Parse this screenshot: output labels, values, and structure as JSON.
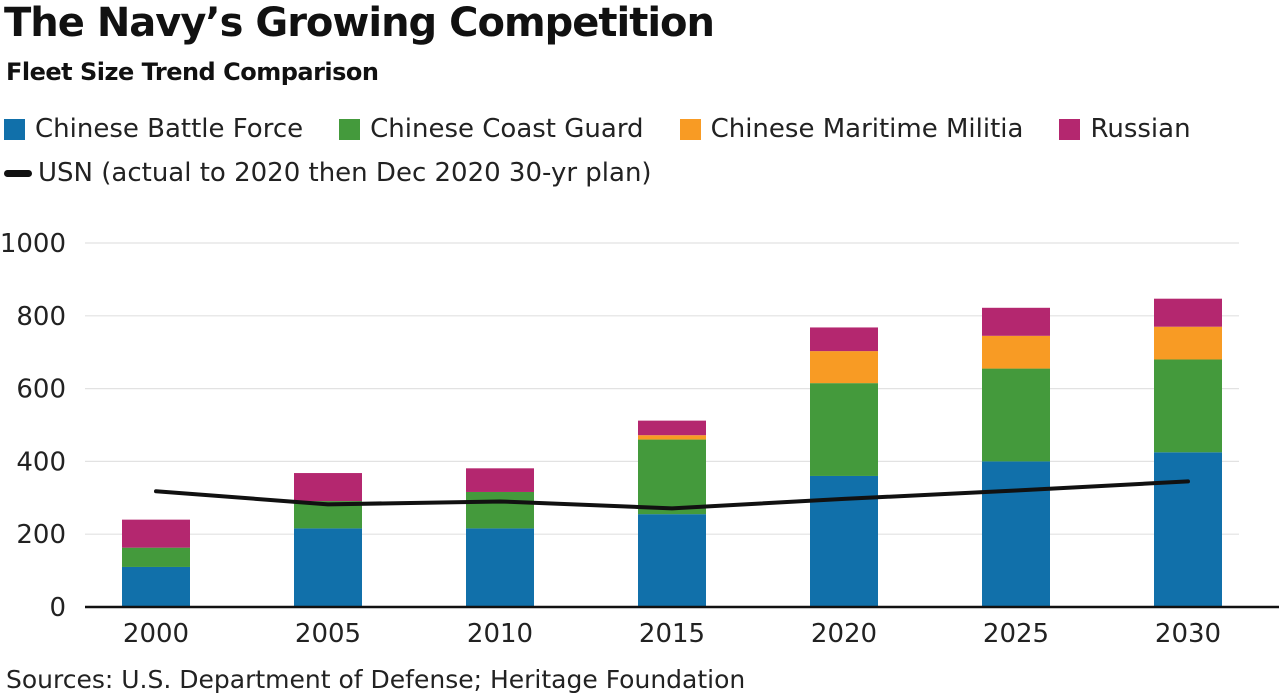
{
  "title": "The Navy’s Growing Competition",
  "subtitle": "Fleet Size Trend Comparison",
  "source": "Sources: U.S. Department of Defense; Heritage Foundation",
  "colors": {
    "chinese_battle_force": "#1170aa",
    "chinese_coast_guard": "#449a3c",
    "chinese_maritime_militia": "#f89b24",
    "russian": "#b4276f",
    "usn": "#111111"
  },
  "legend": {
    "battle_force": "Chinese Battle Force",
    "coast_guard": "Chinese Coast Guard",
    "militia": "Chinese Maritime Militia",
    "russian": "Russian",
    "usn": "USN (actual to 2020 then Dec 2020 30-yr plan)"
  },
  "chart_data": {
    "type": "bar",
    "stacked": true,
    "title": "The Navy’s Growing Competition",
    "subtitle": "Fleet Size Trend Comparison",
    "categories": [
      "2000",
      "2005",
      "2010",
      "2015",
      "2020",
      "2025",
      "2030"
    ],
    "series": [
      {
        "name": "Chinese Battle Force",
        "color": "#1170aa",
        "values": [
          110,
          216,
          216,
          255,
          360,
          400,
          425
        ]
      },
      {
        "name": "Chinese Coast Guard",
        "color": "#449a3c",
        "values": [
          53,
          75,
          100,
          205,
          255,
          255,
          255
        ]
      },
      {
        "name": "Chinese Maritime Militia",
        "color": "#f89b24",
        "values": [
          0,
          0,
          0,
          12,
          88,
          90,
          90
        ]
      },
      {
        "name": "Russian",
        "color": "#b4276f",
        "values": [
          77,
          77,
          65,
          40,
          65,
          77,
          77
        ]
      }
    ],
    "line_series": {
      "name": "USN (actual to 2020 then Dec 2020 30-yr plan)",
      "color": "#111111",
      "values": [
        318,
        282,
        290,
        271,
        297,
        320,
        345
      ]
    },
    "yticks": [
      "0",
      "200",
      "400",
      "600",
      "800",
      "1000"
    ],
    "ylim": [
      0,
      1000
    ],
    "grid": true,
    "legend_position": "top-left"
  }
}
